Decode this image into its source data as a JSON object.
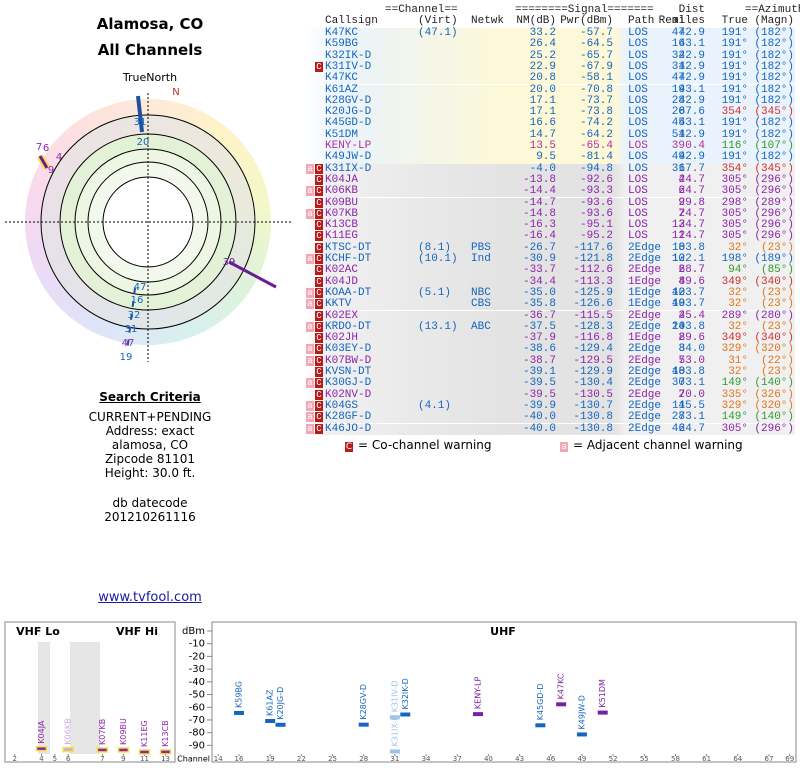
{
  "header": {
    "title": "Alamosa, CO",
    "subtitle": "All Channels"
  },
  "polar": {
    "north_label": "TrueNorth",
    "n_label": "N",
    "labels": [
      "31",
      "20",
      "7",
      "6",
      "4",
      "9",
      "39",
      "47",
      "16",
      "32",
      "31",
      "47",
      "19"
    ]
  },
  "search": {
    "title": "Search Criteria",
    "lines": [
      "CURRENT+PENDING",
      "Address: exact",
      "alamosa, CO",
      "Zipcode 81101",
      "Height: 30.0 ft."
    ],
    "datecode_label": "db datecode",
    "datecode": "201210261116"
  },
  "link": "www.tvfool.com",
  "table": {
    "group_headers": [
      "==Channel==",
      "========Signal=======",
      "Dist",
      "==Azimuth=="
    ],
    "headers": [
      "Callsign",
      "Real",
      "(Virt)",
      "Netwk",
      "NM(dB)",
      "Pwr(dBm)",
      "Path",
      "miles",
      "True",
      "(Magn)"
    ],
    "rows": [
      {
        "flags": null,
        "color": "#1565c0",
        "az_color": "#1565c0",
        "cells": [
          "K47KC",
          "47",
          "(47.1)",
          null,
          "33.2",
          "-57.7",
          "LOS",
          "42.9",
          "191°",
          "(182°)"
        ]
      },
      {
        "flags": null,
        "color": "#1565c0",
        "az_color": "#1565c0",
        "cells": [
          "K59BG",
          "16",
          null,
          null,
          "26.4",
          "-64.5",
          "LOS",
          "43.1",
          "191°",
          "(182°)"
        ]
      },
      {
        "flags": null,
        "color": "#1565c0",
        "az_color": "#1565c0",
        "cells": [
          "K32IK-D",
          "32",
          null,
          null,
          "25.2",
          "-65.7",
          "LOS",
          "42.9",
          "191°",
          "(182°)"
        ]
      },
      {
        "flags": [
          "C"
        ],
        "color": "#1565c0",
        "az_color": "#1565c0",
        "cells": [
          "K31IV-D",
          "31",
          null,
          null,
          "22.9",
          "-67.9",
          "LOS",
          "42.9",
          "191°",
          "(182°)"
        ]
      },
      {
        "flags": null,
        "color": "#1565c0",
        "az_color": "#1565c0",
        "cells": [
          "K47KC",
          "47",
          null,
          null,
          "20.8",
          "-58.1",
          "LOS",
          "42.9",
          "191°",
          "(182°)"
        ]
      },
      {
        "flags": null,
        "color": "#1565c0",
        "az_color": "#1565c0",
        "cells": [
          "K61AZ",
          "19",
          null,
          null,
          "20.0",
          "-70.8",
          "LOS",
          "43.1",
          "191°",
          "(182°)"
        ]
      },
      {
        "flags": null,
        "color": "#1565c0",
        "az_color": "#1565c0",
        "cells": [
          "K28GV-D",
          "28",
          null,
          null,
          "17.1",
          "-73.7",
          "LOS",
          "42.9",
          "191°",
          "(182°)"
        ]
      },
      {
        "flags": null,
        "color": "#1565c0",
        "az_color": "#d32f2f",
        "cells": [
          "K20JG-D",
          "20",
          null,
          null,
          "17.1",
          "-73.8",
          "LOS",
          "67.6",
          "354°",
          "(345°)"
        ]
      },
      {
        "flags": null,
        "color": "#1565c0",
        "az_color": "#1565c0",
        "cells": [
          "K45GD-D",
          "45",
          null,
          null,
          "16.6",
          "-74.2",
          "LOS",
          "43.1",
          "191°",
          "(182°)"
        ]
      },
      {
        "flags": null,
        "color": "#1565c0",
        "az_color": "#1565c0",
        "cells": [
          "K51DM",
          "51",
          null,
          null,
          "14.7",
          "-64.2",
          "LOS",
          "42.9",
          "191°",
          "(182°)"
        ]
      },
      {
        "flags": null,
        "color": "#b0309a",
        "az_color": "#2e9d2e",
        "cells": [
          "KENY-LP",
          "39",
          null,
          null,
          "13.5",
          "-65.4",
          "LOS",
          "0.4",
          "116°",
          "(107°)"
        ]
      },
      {
        "flags": null,
        "color": "#1565c0",
        "az_color": "#1565c0",
        "cells": [
          "K49JW-D",
          "49",
          null,
          null,
          "9.5",
          "-81.4",
          "LOS",
          "42.9",
          "191°",
          "(182°)"
        ]
      },
      {
        "flags": [
          "a",
          "C"
        ],
        "color": "#1565c0",
        "az_color": "#d32f2f",
        "cells": [
          "K31IX-D",
          "31",
          null,
          null,
          "-4.0",
          "-94.8",
          "LOS",
          "67.7",
          "354°",
          "(345°)"
        ]
      },
      {
        "flags": [
          "C"
        ],
        "color": "#8e24aa",
        "az_color": "#8e24aa",
        "cells": [
          "K04JA",
          "4",
          null,
          null,
          "-13.8",
          "-92.6",
          "LOS",
          "24.7",
          "305°",
          "(296°)"
        ]
      },
      {
        "flags": [
          "a",
          "C"
        ],
        "color": "#8e24aa",
        "az_color": "#8e24aa",
        "cells": [
          "K06KB",
          "6",
          null,
          null,
          "-14.4",
          "-93.3",
          "LOS",
          "24.7",
          "305°",
          "(296°)"
        ]
      },
      {
        "flags": [
          "C"
        ],
        "color": "#8e24aa",
        "az_color": "#8e24aa",
        "cells": [
          "K09BU",
          "9",
          null,
          null,
          "-14.7",
          "-93.6",
          "LOS",
          "29.8",
          "298°",
          "(289°)"
        ]
      },
      {
        "flags": [
          "a",
          "C"
        ],
        "color": "#8e24aa",
        "az_color": "#8e24aa",
        "cells": [
          "K07KB",
          "7",
          null,
          null,
          "-14.8",
          "-93.6",
          "LOS",
          "24.7",
          "305°",
          "(296°)"
        ]
      },
      {
        "flags": [
          "C"
        ],
        "color": "#8e24aa",
        "az_color": "#8e24aa",
        "cells": [
          "K13CB",
          "13",
          null,
          null,
          "-16.3",
          "-95.1",
          "LOS",
          "24.7",
          "305°",
          "(296°)"
        ]
      },
      {
        "flags": [
          "C"
        ],
        "color": "#8e24aa",
        "az_color": "#8e24aa",
        "cells": [
          "K11EG",
          "11",
          null,
          null,
          "-16.4",
          "-95.2",
          "LOS",
          "24.7",
          "305°",
          "(296°)"
        ]
      },
      {
        "flags": [
          "C"
        ],
        "color": "#1565c0",
        "az_color": "#e0761a",
        "cells": [
          "KTSC-DT",
          "8",
          "(8.1)",
          "PBS",
          "-26.7",
          "-117.6",
          "2Edge",
          "103.8",
          "32°",
          "(23°)"
        ]
      },
      {
        "flags": [
          "a",
          "C"
        ],
        "color": "#1565c0",
        "az_color": "#1565c0",
        "cells": [
          "KCHF-DT",
          "10",
          "(10.1)",
          "Ind",
          "-30.9",
          "-121.8",
          "2Edge",
          "122.1",
          "198°",
          "(189°)"
        ]
      },
      {
        "flags": [
          "C"
        ],
        "color": "#8e24aa",
        "az_color": "#2e9d2e",
        "cells": [
          "K02AC",
          "2",
          null,
          null,
          "-33.7",
          "-112.6",
          "2Edge",
          "68.7",
          "94°",
          "(85°)"
        ]
      },
      {
        "flags": [
          "C"
        ],
        "color": "#8e24aa",
        "az_color": "#d32f2f",
        "cells": [
          "K04JD",
          "4",
          null,
          null,
          "-34.4",
          "-113.3",
          "1Edge",
          "89.6",
          "349°",
          "(340°)"
        ]
      },
      {
        "flags": [
          "a",
          "C"
        ],
        "color": "#1565c0",
        "az_color": "#e0761a",
        "cells": [
          "KOAA-DT",
          "42",
          "(5.1)",
          "NBC",
          "-35.0",
          "-125.9",
          "1Edge",
          "103.7",
          "32°",
          "(23°)"
        ]
      },
      {
        "flags": [
          "a",
          "C"
        ],
        "color": "#1565c0",
        "az_color": "#e0761a",
        "cells": [
          "KKTV",
          "49",
          null,
          "CBS",
          "-35.8",
          "-126.6",
          "1Edge",
          "103.7",
          "32°",
          "(23°)"
        ]
      },
      {
        "flags": [
          "C"
        ],
        "color": "#8e24aa",
        "az_color": "#8e24aa",
        "cells": [
          "K02EX",
          "2",
          null,
          null,
          "-36.7",
          "-115.5",
          "2Edge",
          "45.4",
          "289°",
          "(280°)"
        ]
      },
      {
        "flags": [
          "a",
          "C"
        ],
        "color": "#1565c0",
        "az_color": "#e0761a",
        "cells": [
          "KRDO-DT",
          "24",
          "(13.1)",
          "ABC",
          "-37.5",
          "-128.3",
          "2Edge",
          "103.8",
          "32°",
          "(23°)"
        ]
      },
      {
        "flags": [
          "C"
        ],
        "color": "#8e24aa",
        "az_color": "#d32f2f",
        "cells": [
          "K02JH",
          "2",
          null,
          null,
          "-37.9",
          "-116.8",
          "1Edge",
          "89.6",
          "349°",
          "(340°)"
        ]
      },
      {
        "flags": [
          "a",
          "C"
        ],
        "color": "#1565c0",
        "az_color": "#e0761a",
        "cells": [
          "K03EY-D",
          "3",
          null,
          null,
          "-38.6",
          "-129.4",
          "2Edge",
          "84.0",
          "329°",
          "(320°)"
        ]
      },
      {
        "flags": [
          "a",
          "C"
        ],
        "color": "#8e24aa",
        "az_color": "#e0761a",
        "cells": [
          "K07BW-D",
          "7",
          null,
          null,
          "-38.7",
          "-129.5",
          "2Edge",
          "53.0",
          "31°",
          "(22°)"
        ]
      },
      {
        "flags": [
          "C"
        ],
        "color": "#1565c0",
        "az_color": "#e0761a",
        "cells": [
          "KVSN-DT",
          "48",
          null,
          null,
          "-39.1",
          "-129.9",
          "2Edge",
          "103.8",
          "32°",
          "(23°)"
        ]
      },
      {
        "flags": [
          "a",
          "C"
        ],
        "color": "#1565c0",
        "az_color": "#2e9d2e",
        "cells": [
          "K30GJ-D",
          "30",
          null,
          null,
          "-39.5",
          "-130.4",
          "2Edge",
          "73.1",
          "149°",
          "(140°)"
        ]
      },
      {
        "flags": [
          "C"
        ],
        "color": "#8e24aa",
        "az_color": "#e0761a",
        "cells": [
          "K02NV-D",
          "2",
          null,
          null,
          "-39.5",
          "-130.5",
          "2Edge",
          "70.0",
          "335°",
          "(326°)"
        ]
      },
      {
        "flags": [
          "a",
          "C"
        ],
        "color": "#1565c0",
        "az_color": "#e0761a",
        "cells": [
          "K04GS",
          "4",
          "(4.1)",
          null,
          "-39.9",
          "-130.7",
          "2Edge",
          "115.5",
          "329°",
          "(320°)"
        ]
      },
      {
        "flags": [
          "a",
          "C"
        ],
        "color": "#1565c0",
        "az_color": "#2e9d2e",
        "cells": [
          "K28GF-D",
          "28",
          null,
          null,
          "-40.0",
          "-130.8",
          "2Edge",
          "73.1",
          "149°",
          "(140°)"
        ]
      },
      {
        "flags": [
          "a",
          "C"
        ],
        "color": "#1565c0",
        "az_color": "#8e24aa",
        "cells": [
          "K46JO-D",
          "46",
          null,
          null,
          "-40.0",
          "-130.8",
          "2Edge",
          "24.7",
          "305°",
          "(296°)"
        ]
      }
    ]
  },
  "legend": [
    {
      "flag": "C",
      "text": "= Co-channel warning"
    },
    {
      "flag": "a",
      "text": "= Adjacent channel warning"
    }
  ],
  "chart_data": [
    {
      "type": "bar",
      "title": "VHF Lo",
      "xlim": [
        1.5,
        8
      ],
      "xticks": [
        2,
        4,
        5,
        6
      ],
      "ylim": [
        -96,
        0
      ],
      "x": [
        4,
        6
      ],
      "values": [
        -92.6,
        -93.3
      ],
      "labels": [
        "K04JA",
        "K06KB"
      ],
      "colors": [
        "#8e24aa",
        "#d2a8e0"
      ]
    },
    {
      "type": "bar",
      "title": "VHF Hi",
      "xlim": [
        6.3,
        13.9
      ],
      "xticks": [
        7,
        9,
        11,
        13
      ],
      "ylim": [
        -96,
        0
      ],
      "x": [
        7,
        9,
        11,
        13
      ],
      "values": [
        -93.6,
        -93.6,
        -95.2,
        -95.1
      ],
      "labels": [
        "K07KB",
        "K09BU",
        "K11EG",
        "K13CB"
      ],
      "colors": [
        "#8e24aa",
        "#8e24aa",
        "#8e24aa",
        "#8e24aa"
      ]
    },
    {
      "type": "bar",
      "title": "UHF",
      "x_label": "Channel",
      "xlim": [
        13.4,
        69.6
      ],
      "xticks": [
        14,
        16,
        19,
        22,
        25,
        28,
        31,
        34,
        37,
        40,
        43,
        46,
        49,
        52,
        55,
        58,
        61,
        64,
        67,
        69
      ],
      "ylim": [
        -96,
        0
      ],
      "yticks": [
        {
          "value": 0,
          "label": "dBm"
        },
        -10,
        -20,
        -30,
        -40,
        -50,
        -60,
        -70,
        -80,
        -90
      ],
      "x": [
        16,
        19,
        20,
        28,
        31,
        31,
        32,
        39,
        45,
        47,
        49,
        51
      ],
      "values": [
        -64.5,
        -70.8,
        -73.8,
        -73.7,
        -94.8,
        -67.9,
        -65.7,
        -65.4,
        -74.2,
        -57.7,
        -81.4,
        -64.2
      ],
      "labels": [
        "K59BG",
        "K61AZ",
        "K20JG-D",
        "K28GV-D",
        "K31IX-D",
        "K31IV-D",
        "K32IK-D",
        "KENY-LP",
        "K45GD-D",
        "K47KC",
        "K49JW-D",
        "K51DM"
      ],
      "colors": [
        "#1565c0",
        "#1565c0",
        "#1565c0",
        "#1565c0",
        "#9fc3e8",
        "#9fc3e8",
        "#1565c0",
        "#7a1fa2",
        "#1565c0",
        "#7a1fa2",
        "#1565c0",
        "#7a1fa2"
      ]
    }
  ]
}
